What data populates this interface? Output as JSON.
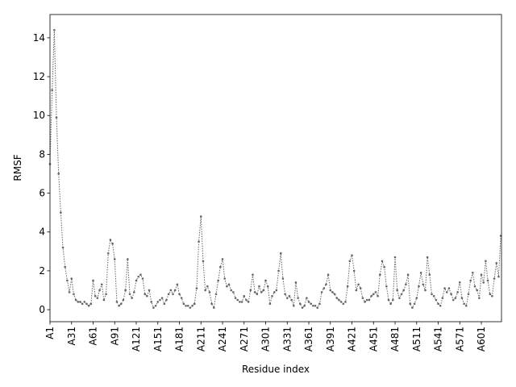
{
  "chart_data": {
    "type": "line",
    "xlabel": "Residue index",
    "ylabel": "RMSF",
    "color": "#666666",
    "x": [
      1,
      4,
      7,
      10,
      13,
      16,
      19,
      22,
      25,
      28,
      31,
      34,
      37,
      40,
      43,
      46,
      49,
      52,
      55,
      58,
      61,
      64,
      67,
      70,
      73,
      76,
      79,
      82,
      85,
      88,
      91,
      94,
      97,
      100,
      103,
      106,
      109,
      112,
      115,
      118,
      121,
      124,
      127,
      130,
      133,
      136,
      139,
      142,
      145,
      148,
      151,
      154,
      157,
      160,
      163,
      166,
      169,
      172,
      175,
      178,
      181,
      184,
      187,
      190,
      193,
      196,
      199,
      202,
      205,
      208,
      211,
      214,
      217,
      220,
      223,
      226,
      229,
      232,
      235,
      238,
      241,
      244,
      247,
      250,
      253,
      256,
      259,
      262,
      265,
      268,
      271,
      274,
      277,
      280,
      283,
      286,
      289,
      292,
      295,
      298,
      301,
      304,
      307,
      310,
      313,
      316,
      319,
      322,
      325,
      328,
      331,
      334,
      337,
      340,
      343,
      346,
      349,
      352,
      355,
      358,
      361,
      364,
      367,
      370,
      373,
      376,
      379,
      382,
      385,
      388,
      391,
      394,
      397,
      400,
      403,
      406,
      409,
      412,
      415,
      418,
      421,
      424,
      427,
      430,
      433,
      436,
      439,
      442,
      445,
      448,
      451,
      454,
      457,
      460,
      463,
      466,
      469,
      472,
      475,
      478,
      481,
      484,
      487,
      490,
      493,
      496,
      499,
      502,
      505,
      508,
      511,
      514,
      517,
      520,
      523,
      526,
      529,
      532,
      535,
      538,
      541,
      544,
      547,
      550,
      553,
      556,
      559,
      562,
      565,
      568,
      571,
      574,
      577,
      580,
      583,
      586,
      589,
      592,
      595,
      598,
      601,
      604,
      607,
      610,
      613,
      616,
      619,
      622,
      625,
      628
    ],
    "values": [
      7.5,
      11.3,
      14.4,
      9.9,
      7.0,
      5.0,
      3.2,
      2.2,
      1.5,
      0.9,
      1.6,
      0.8,
      0.5,
      0.4,
      0.4,
      0.3,
      0.4,
      0.3,
      0.2,
      0.3,
      1.5,
      0.7,
      0.6,
      1.0,
      1.3,
      0.5,
      0.8,
      2.9,
      3.6,
      3.4,
      2.6,
      0.4,
      0.2,
      0.3,
      0.5,
      1.0,
      2.6,
      0.8,
      0.6,
      0.9,
      1.5,
      1.7,
      1.8,
      1.6,
      0.8,
      0.7,
      1.0,
      0.4,
      0.1,
      0.2,
      0.4,
      0.5,
      0.6,
      0.3,
      0.5,
      0.8,
      1.0,
      0.8,
      1.0,
      1.3,
      0.8,
      0.6,
      0.3,
      0.2,
      0.2,
      0.1,
      0.2,
      0.3,
      1.1,
      3.5,
      4.8,
      2.5,
      1.0,
      1.2,
      0.9,
      0.3,
      0.1,
      0.8,
      1.5,
      2.2,
      2.6,
      1.6,
      1.2,
      1.3,
      1.0,
      0.9,
      0.6,
      0.5,
      0.4,
      0.4,
      0.7,
      0.5,
      0.4,
      1.0,
      1.8,
      0.9,
      0.8,
      1.2,
      0.9,
      1.0,
      1.5,
      1.2,
      0.3,
      0.7,
      0.9,
      1.0,
      2.0,
      2.9,
      1.6,
      0.8,
      0.6,
      0.7,
      0.5,
      0.2,
      1.4,
      0.6,
      0.3,
      0.1,
      0.2,
      0.6,
      0.4,
      0.3,
      0.2,
      0.2,
      0.1,
      0.3,
      0.9,
      1.1,
      1.3,
      1.8,
      1.0,
      0.9,
      0.8,
      0.6,
      0.5,
      0.4,
      0.3,
      0.4,
      1.2,
      2.5,
      2.8,
      2.0,
      1.0,
      1.3,
      1.1,
      0.6,
      0.4,
      0.5,
      0.5,
      0.7,
      0.8,
      0.9,
      0.7,
      1.8,
      2.5,
      2.2,
      1.2,
      0.5,
      0.3,
      0.5,
      2.7,
      1.0,
      0.6,
      0.8,
      1.0,
      1.3,
      1.8,
      0.3,
      0.1,
      0.3,
      0.6,
      1.2,
      1.9,
      1.3,
      1.0,
      2.7,
      1.8,
      0.8,
      0.7,
      0.5,
      0.3,
      0.2,
      0.6,
      1.1,
      0.9,
      1.1,
      0.8,
      0.5,
      0.6,
      0.9,
      1.4,
      0.6,
      0.3,
      0.2,
      0.8,
      1.5,
      1.9,
      1.2,
      1.0,
      0.6,
      1.8,
      1.4,
      2.5,
      1.5,
      0.8,
      0.7,
      1.6,
      2.4,
      1.7,
      3.8
    ],
    "xlim": [
      1,
      629
    ],
    "ylim": [
      -0.62,
      15.2
    ],
    "xticks": [
      {
        "value": 1,
        "label": "A1"
      },
      {
        "value": 31,
        "label": "A31"
      },
      {
        "value": 61,
        "label": "A61"
      },
      {
        "value": 91,
        "label": "A91"
      },
      {
        "value": 121,
        "label": "A121"
      },
      {
        "value": 151,
        "label": "A151"
      },
      {
        "value": 181,
        "label": "A181"
      },
      {
        "value": 211,
        "label": "A211"
      },
      {
        "value": 241,
        "label": "A241"
      },
      {
        "value": 271,
        "label": "A271"
      },
      {
        "value": 301,
        "label": "A301"
      },
      {
        "value": 331,
        "label": "A331"
      },
      {
        "value": 361,
        "label": "A361"
      },
      {
        "value": 391,
        "label": "A391"
      },
      {
        "value": 421,
        "label": "A421"
      },
      {
        "value": 451,
        "label": "A451"
      },
      {
        "value": 481,
        "label": "A481"
      },
      {
        "value": 511,
        "label": "A511"
      },
      {
        "value": 541,
        "label": "A541"
      },
      {
        "value": 571,
        "label": "A571"
      },
      {
        "value": 601,
        "label": "A601"
      }
    ],
    "yticks": [
      0,
      2,
      4,
      6,
      8,
      10,
      12,
      14
    ]
  }
}
